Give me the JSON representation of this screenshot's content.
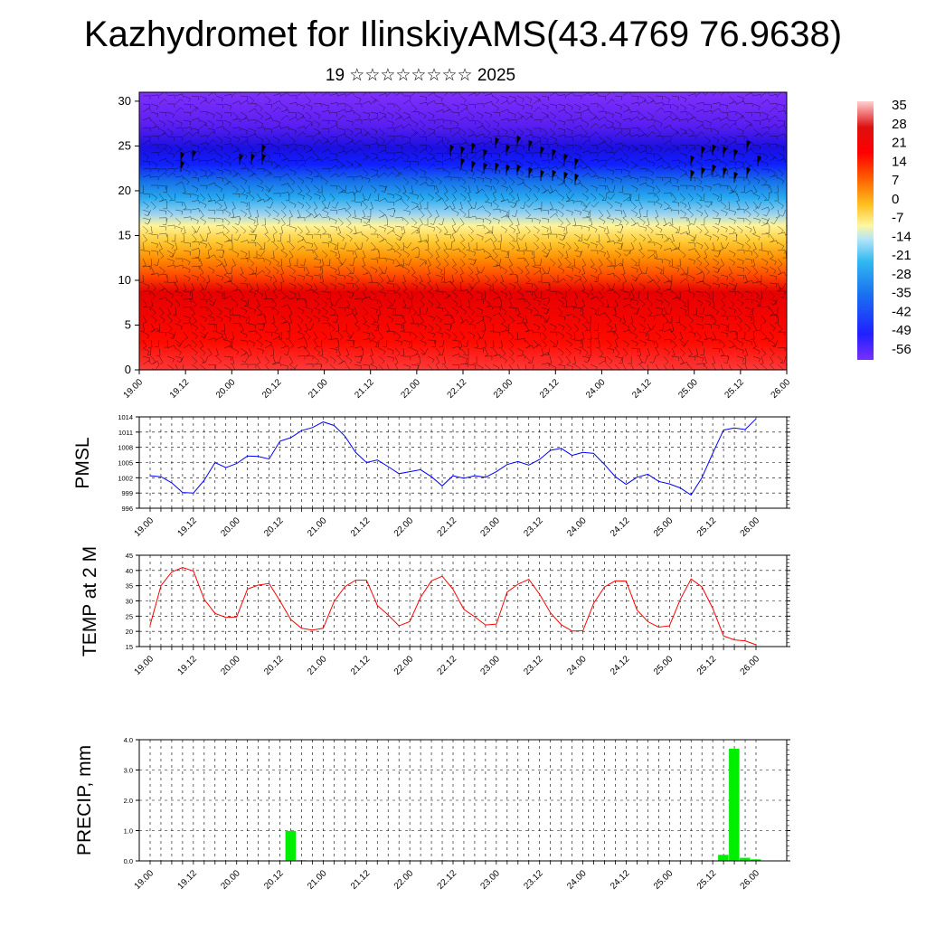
{
  "header": {
    "title": "Kazhydromet for IlinskiyAMS(43.4769 76.9638)",
    "subtitle": "19 ☆☆☆☆☆☆☆☆ 2025"
  },
  "chart_data": [
    {
      "type": "heatmap",
      "name": "vertical cross-section",
      "x_ticks": [
        "19.00",
        "19.12",
        "20.00",
        "20.12",
        "21.00",
        "21.12",
        "22.00",
        "22.12",
        "23.00",
        "23.12",
        "24.00",
        "24.12",
        "25.00",
        "25.12",
        "26.00"
      ],
      "y_ticks": [
        "0",
        "5",
        "10",
        "15",
        "20",
        "25",
        "30"
      ],
      "ylim": [
        0,
        31
      ],
      "colorbar_ticks": [
        "35",
        "28",
        "21",
        "14",
        "7",
        "0",
        "-7",
        "-14",
        "-21",
        "-28",
        "-35",
        "-42",
        "-49",
        "-56"
      ],
      "colorbar_range": [
        -60,
        38
      ],
      "colors": {
        "hot": "#ff0000",
        "warm": "#ff8a00",
        "yellow": "#fff07a",
        "cold": "#18a8f0",
        "deep": "#1010ff",
        "top": "#7a2fff"
      }
    },
    {
      "type": "line",
      "ylabel": "PMSL",
      "color": "#0000ff",
      "x_ticks": [
        "19.00",
        "19.12",
        "20.00",
        "20.12",
        "21.00",
        "21.12",
        "22.00",
        "22.12",
        "23.00",
        "23.12",
        "24.00",
        "24.12",
        "25.00",
        "25.12",
        "26.00"
      ],
      "y_ticks": [
        "996",
        "999",
        "1002",
        "1005",
        "1008",
        "1011",
        "1014"
      ],
      "ylim": [
        996,
        1014
      ],
      "values": [
        1002.4,
        1002.2,
        1001.0,
        999.1,
        999.0,
        1001.5,
        1005.0,
        1004.0,
        1004.8,
        1006.3,
        1006.2,
        1005.7,
        1009.2,
        1009.9,
        1011.3,
        1011.9,
        1013.0,
        1012.3,
        1010.2,
        1007.0,
        1005.0,
        1005.5,
        1004.2,
        1002.8,
        1003.2,
        1003.6,
        1002.2,
        1000.4,
        1002.4,
        1001.9,
        1002.4,
        1002.1,
        1003.2,
        1004.6,
        1005.2,
        1004.5,
        1005.6,
        1007.4,
        1007.8,
        1006.4,
        1007.0,
        1006.8,
        1004.6,
        1002.2,
        1000.7,
        1002.1,
        1002.7,
        1001.3,
        1000.8,
        1000.0,
        998.6,
        1002.0,
        1006.8,
        1011.4,
        1011.8,
        1011.5,
        1013.6
      ]
    },
    {
      "type": "line",
      "ylabel": "TEMP at 2 M",
      "color": "#ff0000",
      "x_ticks": [
        "19.00",
        "19.12",
        "20.00",
        "20.12",
        "21.00",
        "21.12",
        "22.00",
        "22.12",
        "23.00",
        "23.12",
        "24.00",
        "24.12",
        "25.00",
        "25.12",
        "26.00"
      ],
      "y_ticks": [
        "15",
        "20",
        "25",
        "30",
        "35",
        "40",
        "45"
      ],
      "ylim": [
        15,
        45
      ],
      "values": [
        22.0,
        35.0,
        39.5,
        41.0,
        39.8,
        30.5,
        25.9,
        24.6,
        24.7,
        33.9,
        35.2,
        35.7,
        30.0,
        23.9,
        21.0,
        20.4,
        21.0,
        29.8,
        34.7,
        36.8,
        36.8,
        28.5,
        25.4,
        21.8,
        23.2,
        31.2,
        36.6,
        38.1,
        33.8,
        27.2,
        24.8,
        22.1,
        22.4,
        32.9,
        35.5,
        37.1,
        32.2,
        26.1,
        22.2,
        20.1,
        20.2,
        29.2,
        34.6,
        36.6,
        36.5,
        27.0,
        23.2,
        21.4,
        21.8,
        30.5,
        37.2,
        34.6,
        27.6,
        18.5,
        17.2,
        16.9,
        15.6
      ]
    },
    {
      "type": "bar",
      "ylabel": "PRECIP, mm",
      "color": "#00ee00",
      "x_ticks": [
        "19.00",
        "19.12",
        "20.00",
        "20.12",
        "21.00",
        "21.12",
        "22.00",
        "22.12",
        "23.00",
        "23.12",
        "24.00",
        "24.12",
        "25.00",
        "25.12",
        "26.00"
      ],
      "y_ticks": [
        "0.0",
        "1.0",
        "2.0",
        "3.0",
        "4.0"
      ],
      "ylim": [
        0,
        4.0
      ],
      "values": [
        0,
        0,
        0,
        0,
        0,
        0,
        0,
        0,
        0,
        0,
        0,
        0,
        0,
        0.99,
        0.02,
        0,
        0,
        0,
        0,
        0,
        0,
        0,
        0,
        0,
        0,
        0,
        0,
        0.02,
        0,
        0,
        0,
        0,
        0,
        0,
        0,
        0,
        0,
        0,
        0,
        0,
        0,
        0,
        0,
        0,
        0,
        0,
        0,
        0,
        0,
        0,
        0,
        0,
        0,
        0.2,
        3.7,
        0.1,
        0.05
      ]
    }
  ]
}
